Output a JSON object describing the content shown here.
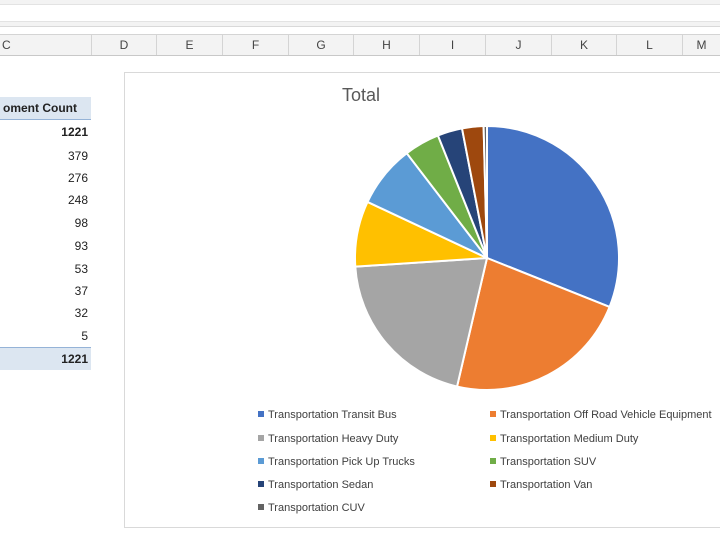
{
  "columns": [
    "C",
    "D",
    "E",
    "F",
    "G",
    "H",
    "I",
    "J",
    "K",
    "L",
    "M"
  ],
  "pivot": {
    "header": "oment Count",
    "grand_top": "1221",
    "values": [
      "379",
      "276",
      "248",
      "98",
      "93",
      "53",
      "37",
      "32",
      "5"
    ],
    "total": "1221"
  },
  "chart_data": {
    "type": "pie",
    "title": "Total",
    "categories": [
      "Transportation Transit Bus",
      "Transportation Off Road Vehicle Equipment",
      "Transportation Heavy Duty",
      "Transportation Medium Duty",
      "Transportation Pick Up Trucks",
      "Transportation SUV",
      "Transportation Sedan",
      "Transportation Van",
      "Transportation CUV"
    ],
    "values": [
      379,
      276,
      248,
      98,
      93,
      53,
      37,
      32,
      5
    ],
    "colors": [
      "#4472c4",
      "#ed7d31",
      "#a5a5a5",
      "#ffc000",
      "#5b9bd5",
      "#70ad47",
      "#264478",
      "#9e480e",
      "#636363"
    ],
    "legend": "bottom"
  }
}
